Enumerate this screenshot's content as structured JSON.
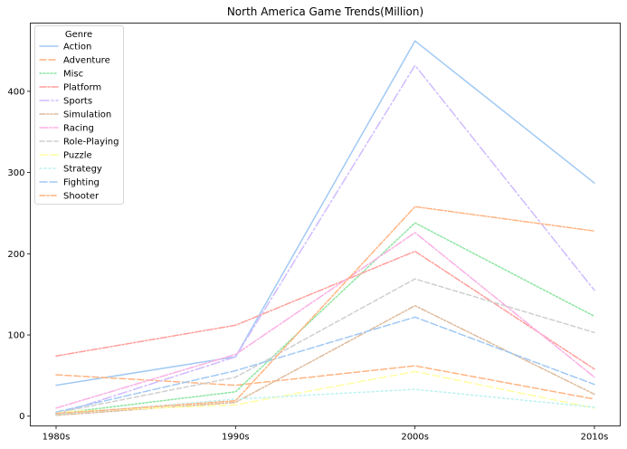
{
  "chart_data": {
    "type": "line",
    "title": "North America Game Trends(Million)",
    "xlabel": "",
    "ylabel": "",
    "categories": [
      "1980s",
      "1990s",
      "2000s",
      "2010s"
    ],
    "ylim": [
      -12,
      484
    ],
    "yticks": [
      0,
      100,
      200,
      300,
      400
    ],
    "grid": false,
    "legend": {
      "title": "Genre",
      "placement": "top-left"
    },
    "series": [
      {
        "name": "Action",
        "values": [
          38,
          73,
          462,
          287
        ],
        "color": "#a1c9f4",
        "dash": ""
      },
      {
        "name": "Adventure",
        "values": [
          51,
          38,
          62,
          21
        ],
        "color": "#ffb482",
        "dash": "7 3"
      },
      {
        "name": "Misc",
        "values": [
          3,
          30,
          238,
          123
        ],
        "color": "#8de5a1",
        "dash": "2 2"
      },
      {
        "name": "Platform",
        "values": [
          74,
          112,
          203,
          58
        ],
        "color": "#ff9f9b",
        "dash": "7 2 2 2"
      },
      {
        "name": "Sports",
        "values": [
          2,
          73,
          432,
          155
        ],
        "color": "#d0bbff",
        "dash": "10 3 2 3"
      },
      {
        "name": "Simulation",
        "values": [
          1,
          17,
          136,
          27
        ],
        "color": "#debb9b",
        "dash": "6 2 2 2 2 2"
      },
      {
        "name": "Racing",
        "values": [
          10,
          76,
          226,
          48
        ],
        "color": "#fab0e4",
        "dash": "9 2 2 2"
      },
      {
        "name": "Role-Playing",
        "values": [
          4,
          48,
          169,
          103
        ],
        "color": "#cfcfcf",
        "dash": "5 3"
      },
      {
        "name": "Puzzle",
        "values": [
          5,
          14,
          55,
          10
        ],
        "color": "#fffea3",
        "dash": "8 4"
      },
      {
        "name": "Strategy",
        "values": [
          2,
          21,
          33,
          11
        ],
        "color": "#b9f2f0",
        "dash": "2 3"
      },
      {
        "name": "Fighting",
        "values": [
          5,
          56,
          122,
          39
        ],
        "color": "#a1c9f4",
        "dash": "8 3"
      },
      {
        "name": "Shooter",
        "values": [
          3,
          19,
          258,
          228
        ],
        "color": "#ffb482",
        "dash": "6 2 2 2"
      }
    ]
  }
}
